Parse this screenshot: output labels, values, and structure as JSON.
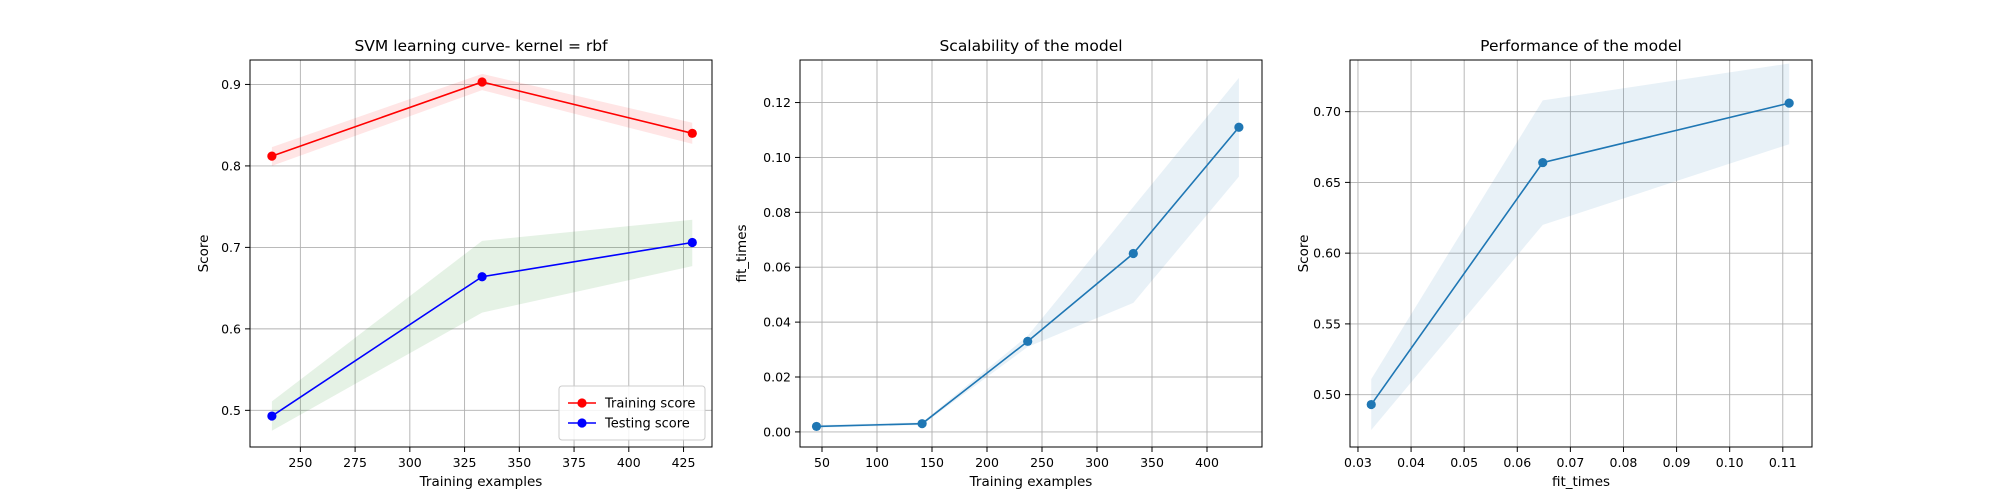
{
  "chart_data": [
    {
      "type": "line",
      "title": "SVM learning curve- kernel = rbf",
      "xlabel": "Training examples",
      "ylabel": "Score",
      "xlim": [
        227,
        438
      ],
      "ylim": [
        0.455,
        0.93
      ],
      "xticks": [
        250,
        275,
        300,
        325,
        350,
        375,
        400,
        425
      ],
      "yticks": [
        0.5,
        0.6,
        0.7,
        0.8,
        0.9
      ],
      "ytick_decimals": 1,
      "grid": true,
      "legend": "lower-right",
      "series": [
        {
          "name": "Training score",
          "color": "#ff0000",
          "band_color": "#ff0000",
          "x": [
            237,
            333,
            429
          ],
          "y": [
            0.812,
            0.903,
            0.84
          ],
          "band_low": [
            0.8,
            0.893,
            0.827
          ],
          "band_high": [
            0.823,
            0.913,
            0.853
          ]
        },
        {
          "name": "Testing score",
          "color": "#0000ff",
          "band_color": "#008000",
          "x": [
            237,
            333,
            429
          ],
          "y": [
            0.493,
            0.664,
            0.706
          ],
          "band_low": [
            0.475,
            0.62,
            0.677
          ],
          "band_high": [
            0.511,
            0.708,
            0.734
          ]
        }
      ]
    },
    {
      "type": "line",
      "title": "Scalability of the model",
      "xlabel": "Training examples",
      "ylabel": "fit_times",
      "xlim": [
        30,
        450
      ],
      "ylim": [
        -0.0055,
        0.1355
      ],
      "xticks": [
        50,
        100,
        150,
        200,
        250,
        300,
        350,
        400
      ],
      "yticks": [
        0.0,
        0.02,
        0.04,
        0.06,
        0.08,
        0.1,
        0.12
      ],
      "ytick_decimals": 2,
      "grid": true,
      "series": [
        {
          "color": "#1f77b4",
          "band_color": "#1f77b4",
          "x": [
            45,
            141,
            237,
            333,
            429
          ],
          "y": [
            0.002,
            0.003,
            0.033,
            0.065,
            0.111
          ],
          "band_low": [
            0.0015,
            0.0025,
            0.031,
            0.047,
            0.093
          ],
          "band_high": [
            0.0025,
            0.0035,
            0.035,
            0.082,
            0.129
          ]
        }
      ]
    },
    {
      "type": "line",
      "title": "Performance of the model",
      "xlabel": "fit_times",
      "ylabel": "Score",
      "xlim": [
        0.0285,
        0.1155
      ],
      "ylim": [
        0.463,
        0.7365
      ],
      "xticks": [
        0.03,
        0.04,
        0.05,
        0.06,
        0.07,
        0.08,
        0.09,
        0.1,
        0.11
      ],
      "yticks": [
        0.5,
        0.55,
        0.6,
        0.65,
        0.7
      ],
      "xtick_decimals": 2,
      "ytick_decimals": 2,
      "grid": true,
      "series": [
        {
          "color": "#1f77b4",
          "band_color": "#1f77b4",
          "x": [
            0.0325,
            0.0648,
            0.1112
          ],
          "y": [
            0.493,
            0.664,
            0.706
          ],
          "band_low": [
            0.475,
            0.62,
            0.677
          ],
          "band_high": [
            0.511,
            0.708,
            0.734
          ]
        }
      ]
    }
  ]
}
